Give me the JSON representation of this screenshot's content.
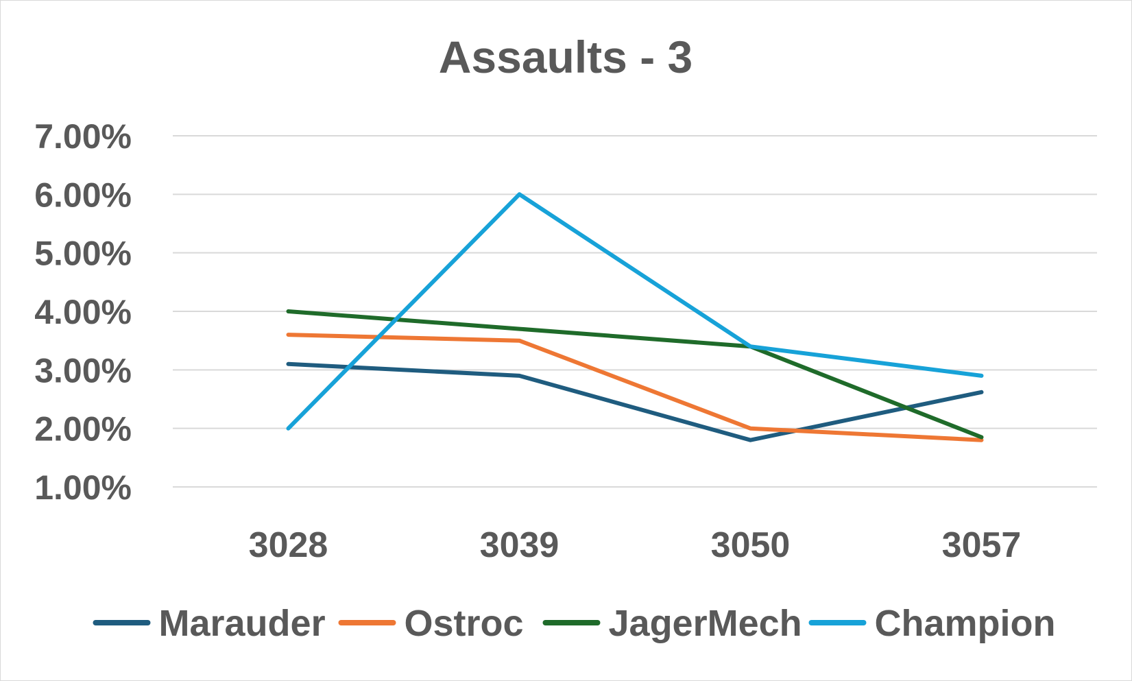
{
  "chart_data": {
    "type": "line",
    "title": "Assaults - 3",
    "xlabel": "",
    "ylabel": "",
    "categories": [
      "3028",
      "3039",
      "3050",
      "3057"
    ],
    "ylim": [
      0.01,
      0.07
    ],
    "yticks": [
      {
        "value": 0.07,
        "label": "7.00%"
      },
      {
        "value": 0.06,
        "label": "6.00%"
      },
      {
        "value": 0.05,
        "label": "5.00%"
      },
      {
        "value": 0.04,
        "label": "4.00%"
      },
      {
        "value": 0.03,
        "label": "3.00%"
      },
      {
        "value": 0.02,
        "label": "2.00%"
      },
      {
        "value": 0.01,
        "label": "1.00%"
      }
    ],
    "grid": true,
    "legend_position": "bottom",
    "series": [
      {
        "name": "Marauder",
        "color": "#1f5c7f",
        "values": [
          0.031,
          0.029,
          0.018,
          0.0262
        ]
      },
      {
        "name": "Ostroc",
        "color": "#ee7734",
        "values": [
          0.036,
          0.035,
          0.02,
          0.018
        ]
      },
      {
        "name": "JagerMech",
        "color": "#1f6b2a",
        "values": [
          0.04,
          0.037,
          0.034,
          0.0185
        ]
      },
      {
        "name": "Champion",
        "color": "#17a2d8",
        "values": [
          0.02,
          0.06,
          0.034,
          0.029
        ]
      }
    ]
  }
}
